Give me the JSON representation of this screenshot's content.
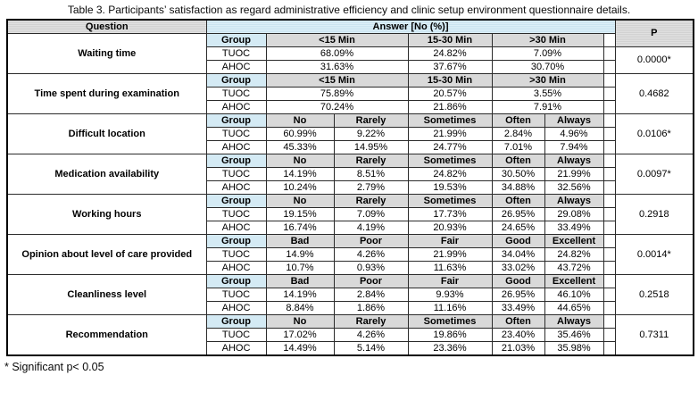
{
  "title": "Table 3. Participants’ satisfaction as regard administrative efficiency and clinic setup environment questionnaire details.",
  "footnote": "* Significant p< 0.05",
  "colors": {
    "header_gray": "#d6d6d6",
    "header_blue": "#cfe9f5",
    "border": "#000000",
    "background": "#ffffff"
  },
  "table": {
    "question_header": "Question",
    "answer_header": "Answer [No (%)]",
    "p_header": "P",
    "group_label": "Group",
    "row_labels": [
      "TUOC",
      "AHOC"
    ],
    "blocks": [
      {
        "question": "Waiting time",
        "columns": [
          "<15 Min",
          "15-30 Min",
          ">30 Min"
        ],
        "spans": [
          2,
          1,
          2
        ],
        "rows": [
          [
            "68.09%",
            "24.82%",
            "7.09%"
          ],
          [
            "31.63%",
            "37.67%",
            "30.70%"
          ]
        ],
        "p": "0.0000*"
      },
      {
        "question": "Time spent during examination",
        "columns": [
          "<15 Min",
          "15-30 Min",
          ">30 Min"
        ],
        "spans": [
          2,
          1,
          2
        ],
        "rows": [
          [
            "75.89%",
            "20.57%",
            "3.55%"
          ],
          [
            "70.24%",
            "21.86%",
            "7.91%"
          ]
        ],
        "p": "0.4682"
      },
      {
        "question": "Difficult location",
        "columns": [
          "No",
          "Rarely",
          "Sometimes",
          "Often",
          "Always"
        ],
        "spans": [
          1,
          1,
          1,
          1,
          1
        ],
        "rows": [
          [
            "60.99%",
            "9.22%",
            "21.99%",
            "2.84%",
            "4.96%"
          ],
          [
            "45.33%",
            "14.95%",
            "24.77%",
            "7.01%",
            "7.94%"
          ]
        ],
        "p": "0.0106*"
      },
      {
        "question": "Medication availability",
        "columns": [
          "No",
          "Rarely",
          "Sometimes",
          "Often",
          "Always"
        ],
        "spans": [
          1,
          1,
          1,
          1,
          1
        ],
        "rows": [
          [
            "14.19%",
            "8.51%",
            "24.82%",
            "30.50%",
            "21.99%"
          ],
          [
            "10.24%",
            "2.79%",
            "19.53%",
            "34.88%",
            "32.56%"
          ]
        ],
        "p": "0.0097*"
      },
      {
        "question": "Working hours",
        "columns": [
          "No",
          "Rarely",
          "Sometimes",
          "Often",
          "Always"
        ],
        "spans": [
          1,
          1,
          1,
          1,
          1
        ],
        "rows": [
          [
            "19.15%",
            "7.09%",
            "17.73%",
            "26.95%",
            "29.08%"
          ],
          [
            "16.74%",
            "4.19%",
            "20.93%",
            "24.65%",
            "33.49%"
          ]
        ],
        "p": "0.2918"
      },
      {
        "question": "Opinion about level of care provided",
        "columns": [
          "Bad",
          "Poor",
          "Fair",
          "Good",
          "Excellent"
        ],
        "spans": [
          1,
          1,
          1,
          1,
          1
        ],
        "rows": [
          [
            "14.9%",
            "4.26%",
            "21.99%",
            "34.04%",
            "24.82%"
          ],
          [
            "10.7%",
            "0.93%",
            "11.63%",
            "33.02%",
            "43.72%"
          ]
        ],
        "p": "0.0014*"
      },
      {
        "question": "Cleanliness level",
        "columns": [
          "Bad",
          "Poor",
          "Fair",
          "Good",
          "Excellent"
        ],
        "spans": [
          1,
          1,
          1,
          1,
          1
        ],
        "rows": [
          [
            "14.19%",
            "2.84%",
            "9.93%",
            "26.95%",
            "46.10%"
          ],
          [
            "8.84%",
            "1.86%",
            "11.16%",
            "33.49%",
            "44.65%"
          ]
        ],
        "p": "0.2518"
      },
      {
        "question": "Recommendation",
        "columns": [
          "No",
          "Rarely",
          "Sometimes",
          "Often",
          "Always"
        ],
        "spans": [
          1,
          1,
          1,
          1,
          1
        ],
        "rows": [
          [
            "17.02%",
            "4.26%",
            "19.86%",
            "23.40%",
            "35.46%"
          ],
          [
            "14.49%",
            "5.14%",
            "23.36%",
            "21.03%",
            "35.98%"
          ]
        ],
        "p": "0.7311"
      }
    ]
  }
}
